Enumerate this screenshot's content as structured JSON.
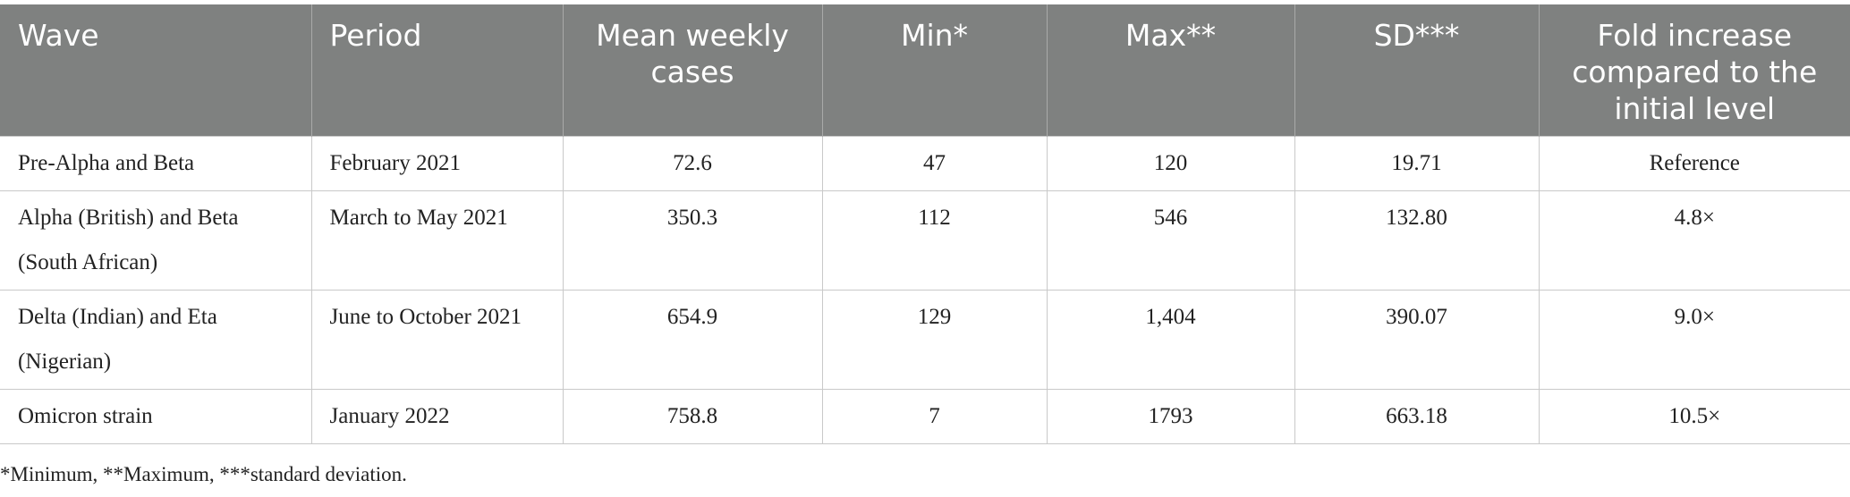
{
  "table": {
    "header": [
      "Wave",
      "Period",
      "Mean weekly cases",
      "Min*",
      "Max**",
      "SD***",
      "Fold increase compared to the initial level"
    ],
    "rows": [
      [
        "Pre-Alpha and Beta",
        "February 2021",
        "72.6",
        "47",
        "120",
        "19.71",
        "Reference"
      ],
      [
        "Alpha (British) and Beta (South African)",
        "March to May 2021",
        "350.3",
        "112",
        "546",
        "132.80",
        "4.8×"
      ],
      [
        "Delta (Indian) and Eta (Nigerian)",
        "June to October 2021",
        "654.9",
        "129",
        "1,404",
        "390.07",
        "9.0×"
      ],
      [
        "Omicron strain",
        "January 2022",
        "758.8",
        "7",
        "1793",
        "663.18",
        "10.5×"
      ]
    ]
  },
  "footnote": "*Minimum, **Maximum, ***standard deviation."
}
